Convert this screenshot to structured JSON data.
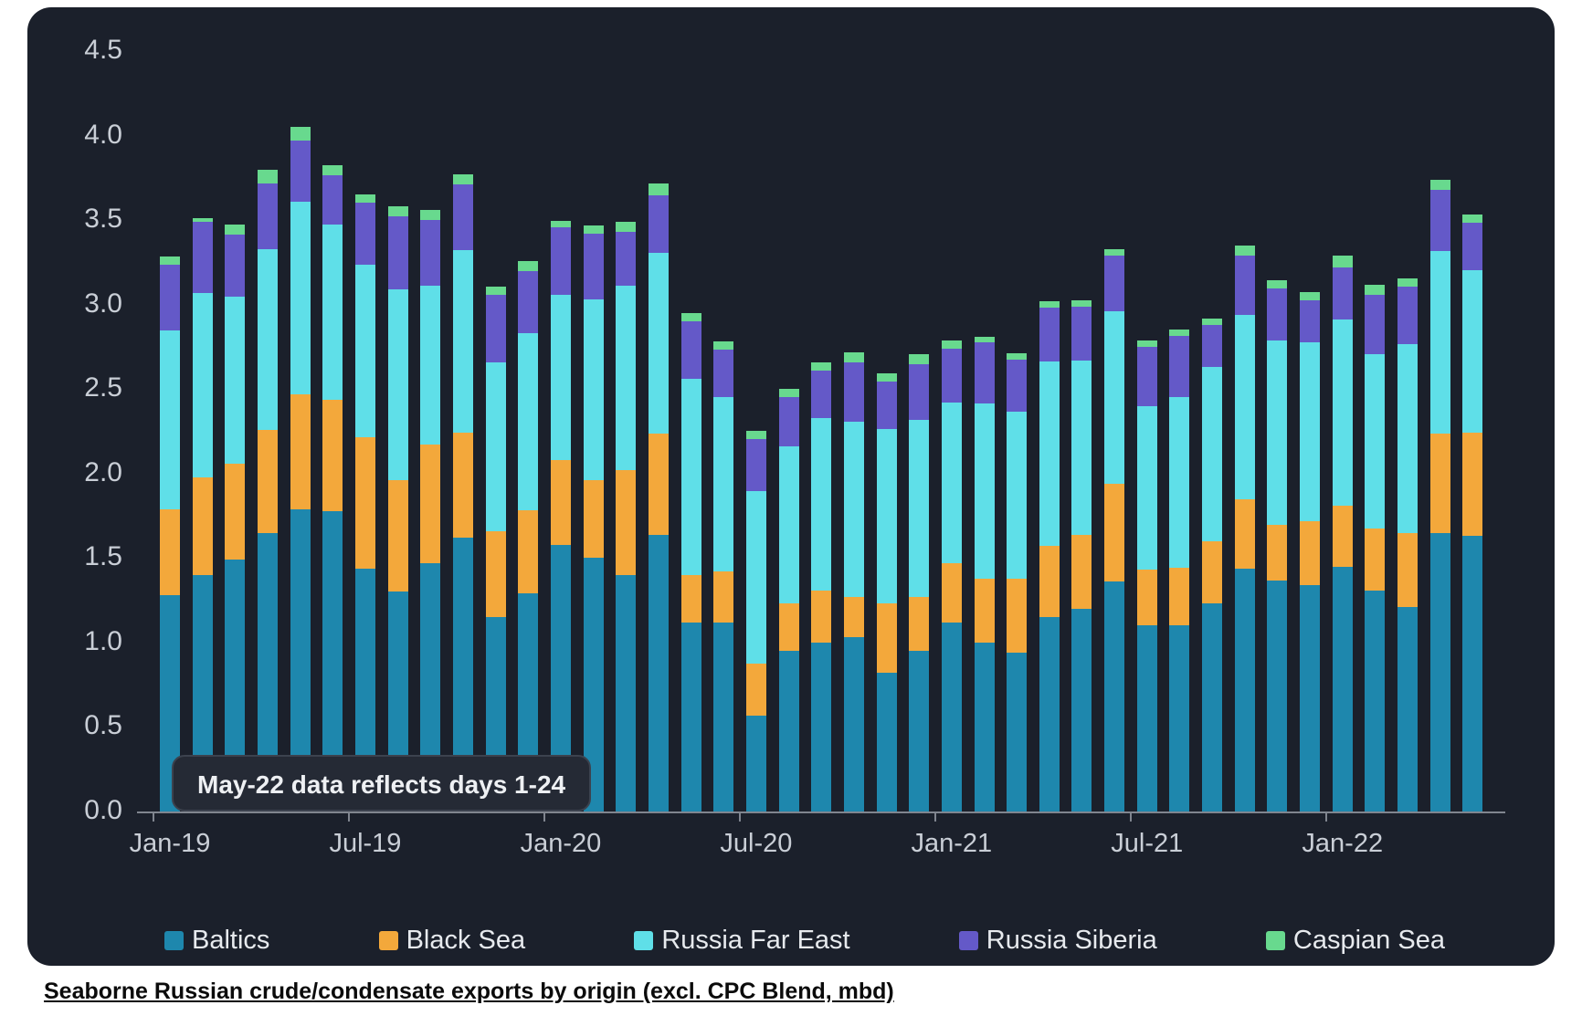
{
  "page": {
    "caption": "Seaborne Russian crude/condensate exports by origin (excl. CPC Blend, mbd)"
  },
  "annotation": {
    "text": "May-22 data reflects days 1-24"
  },
  "colors": {
    "card_background": "#1b202b",
    "page_background": "#ffffff",
    "axis_text": "#c9ced6",
    "axis_line": "#80858f",
    "annotation_background": "#252a35",
    "annotation_border": "#3c424e",
    "legend_text": "#e7eaee"
  },
  "chart_data": {
    "type": "bar",
    "stacked": true,
    "title": "Seaborne Russian crude/condensate exports by origin (excl. CPC Blend, mbd)",
    "xlabel": "",
    "ylabel": "",
    "unit": "mbd",
    "ylim": [
      0,
      4.5
    ],
    "grid": false,
    "legend_position": "bottom",
    "y_ticks": [
      "0.0",
      "0.5",
      "1.0",
      "1.5",
      "2.0",
      "2.5",
      "3.0",
      "3.5",
      "4.0",
      "4.5"
    ],
    "x_tick_labels": [
      "Jan-19",
      "Jul-19",
      "Jan-20",
      "Jul-20",
      "Jan-21",
      "Jul-21",
      "Jan-22"
    ],
    "x_tick_indices": [
      0,
      6,
      12,
      18,
      24,
      30,
      36
    ],
    "categories": [
      "Jan-19",
      "Feb-19",
      "Mar-19",
      "Apr-19",
      "May-19",
      "Jun-19",
      "Jul-19",
      "Aug-19",
      "Sep-19",
      "Oct-19",
      "Nov-19",
      "Dec-19",
      "Jan-20",
      "Feb-20",
      "Mar-20",
      "Apr-20",
      "May-20",
      "Jun-20",
      "Jul-20",
      "Aug-20",
      "Sep-20",
      "Oct-20",
      "Nov-20",
      "Dec-20",
      "Jan-21",
      "Feb-21",
      "Mar-21",
      "Apr-21",
      "May-21",
      "Jun-21",
      "Jul-21",
      "Aug-21",
      "Sep-21",
      "Oct-21",
      "Nov-21",
      "Dec-21",
      "Jan-22",
      "Feb-22",
      "Mar-22",
      "Apr-22",
      "May-22"
    ],
    "series": [
      {
        "name": "Baltics",
        "color": "#1e87ad",
        "values": [
          1.28,
          1.4,
          1.49,
          1.65,
          1.79,
          1.78,
          1.44,
          1.3,
          1.47,
          1.62,
          1.15,
          1.29,
          1.58,
          1.5,
          1.4,
          1.64,
          1.12,
          1.12,
          0.57,
          0.95,
          1.0,
          1.03,
          0.82,
          0.95,
          1.12,
          1.0,
          0.94,
          1.15,
          1.2,
          1.36,
          1.1,
          1.1,
          1.23,
          1.44,
          1.37,
          1.34,
          1.45,
          1.31,
          1.21,
          1.65,
          1.63
        ]
      },
      {
        "name": "Black Sea",
        "color": "#f3a83b",
        "values": [
          0.51,
          0.58,
          0.57,
          0.61,
          0.68,
          0.66,
          0.78,
          0.66,
          0.7,
          0.62,
          0.51,
          0.49,
          0.5,
          0.46,
          0.62,
          0.6,
          0.28,
          0.3,
          0.31,
          0.28,
          0.31,
          0.24,
          0.41,
          0.32,
          0.35,
          0.38,
          0.44,
          0.42,
          0.44,
          0.58,
          0.33,
          0.34,
          0.37,
          0.41,
          0.33,
          0.38,
          0.36,
          0.37,
          0.44,
          0.59,
          0.61
        ]
      },
      {
        "name": "Russia Far East",
        "color": "#5fdfe8",
        "values": [
          1.06,
          1.09,
          0.99,
          1.07,
          1.14,
          1.04,
          1.02,
          1.13,
          0.94,
          1.08,
          1.0,
          1.05,
          0.98,
          1.07,
          1.09,
          1.07,
          1.16,
          1.03,
          1.02,
          0.93,
          1.02,
          1.04,
          1.03,
          1.05,
          0.95,
          1.04,
          0.99,
          1.09,
          1.03,
          1.02,
          0.97,
          1.01,
          1.03,
          1.09,
          1.09,
          1.06,
          1.1,
          1.03,
          1.12,
          1.08,
          0.96
        ]
      },
      {
        "name": "Russia Siberia",
        "color": "#6459c8",
        "values": [
          0.39,
          0.42,
          0.37,
          0.39,
          0.36,
          0.29,
          0.37,
          0.43,
          0.39,
          0.39,
          0.4,
          0.37,
          0.4,
          0.39,
          0.32,
          0.34,
          0.34,
          0.28,
          0.31,
          0.29,
          0.28,
          0.35,
          0.28,
          0.33,
          0.32,
          0.36,
          0.31,
          0.32,
          0.32,
          0.33,
          0.35,
          0.36,
          0.25,
          0.35,
          0.31,
          0.25,
          0.31,
          0.35,
          0.34,
          0.36,
          0.28
        ]
      },
      {
        "name": "Caspian Sea",
        "color": "#68d98e",
        "values": [
          0.05,
          0.02,
          0.06,
          0.08,
          0.08,
          0.06,
          0.05,
          0.06,
          0.06,
          0.06,
          0.05,
          0.06,
          0.04,
          0.05,
          0.06,
          0.07,
          0.05,
          0.05,
          0.05,
          0.05,
          0.05,
          0.06,
          0.05,
          0.06,
          0.05,
          0.03,
          0.04,
          0.04,
          0.04,
          0.04,
          0.04,
          0.04,
          0.04,
          0.06,
          0.05,
          0.05,
          0.07,
          0.06,
          0.05,
          0.06,
          0.05
        ]
      }
    ]
  }
}
